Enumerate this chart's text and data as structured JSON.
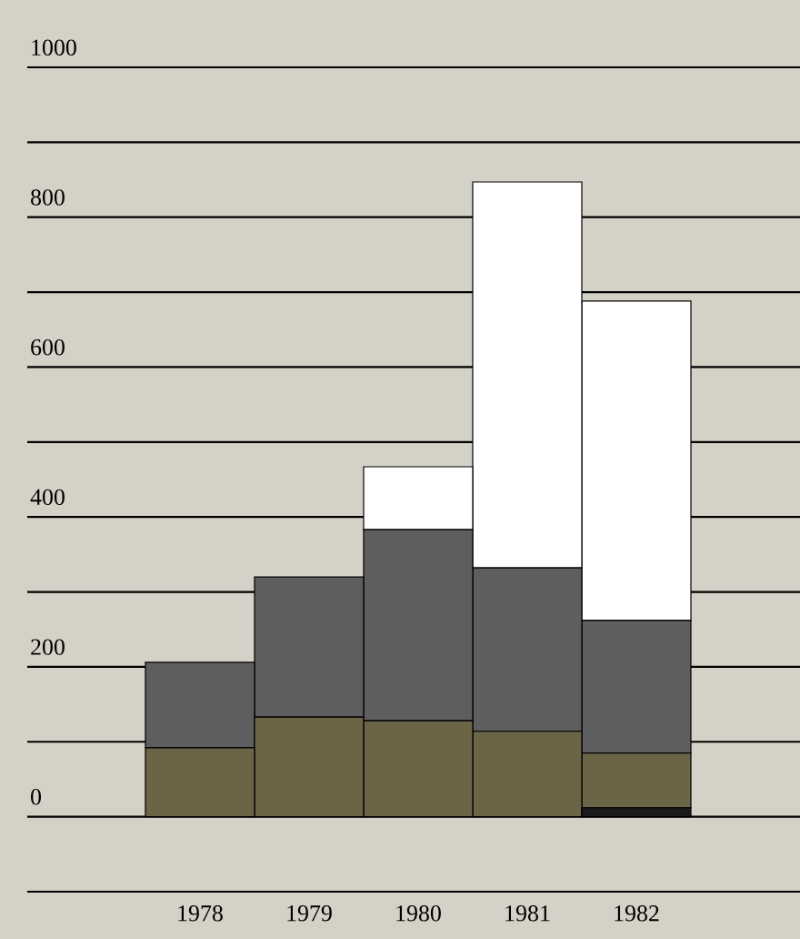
{
  "chart_data": {
    "type": "bar",
    "stacked": true,
    "categories": [
      "1978",
      "1979",
      "1980",
      "1981",
      "1982"
    ],
    "series": [
      {
        "color": "#1a1a1a",
        "values": [
          null,
          null,
          null,
          null,
          12
        ]
      },
      {
        "color": "#6b6446",
        "values": [
          92,
          133,
          128,
          114,
          73
        ]
      },
      {
        "color": "#5e5e60",
        "values": [
          114,
          187,
          255,
          218,
          177
        ]
      },
      {
        "color": "#ffffff",
        "values": [
          null,
          null,
          84,
          515,
          426
        ]
      }
    ],
    "ylim": [
      -100,
      1000
    ],
    "yticks": [
      {
        "value": -100,
        "label": null
      },
      0,
      {
        "value": 100,
        "label": null
      },
      200,
      {
        "value": 300,
        "label": null
      },
      400,
      {
        "value": 500,
        "label": null
      },
      600,
      {
        "value": 700,
        "label": null
      },
      800,
      {
        "value": 900,
        "label": null
      },
      1000
    ],
    "grid": "y"
  }
}
